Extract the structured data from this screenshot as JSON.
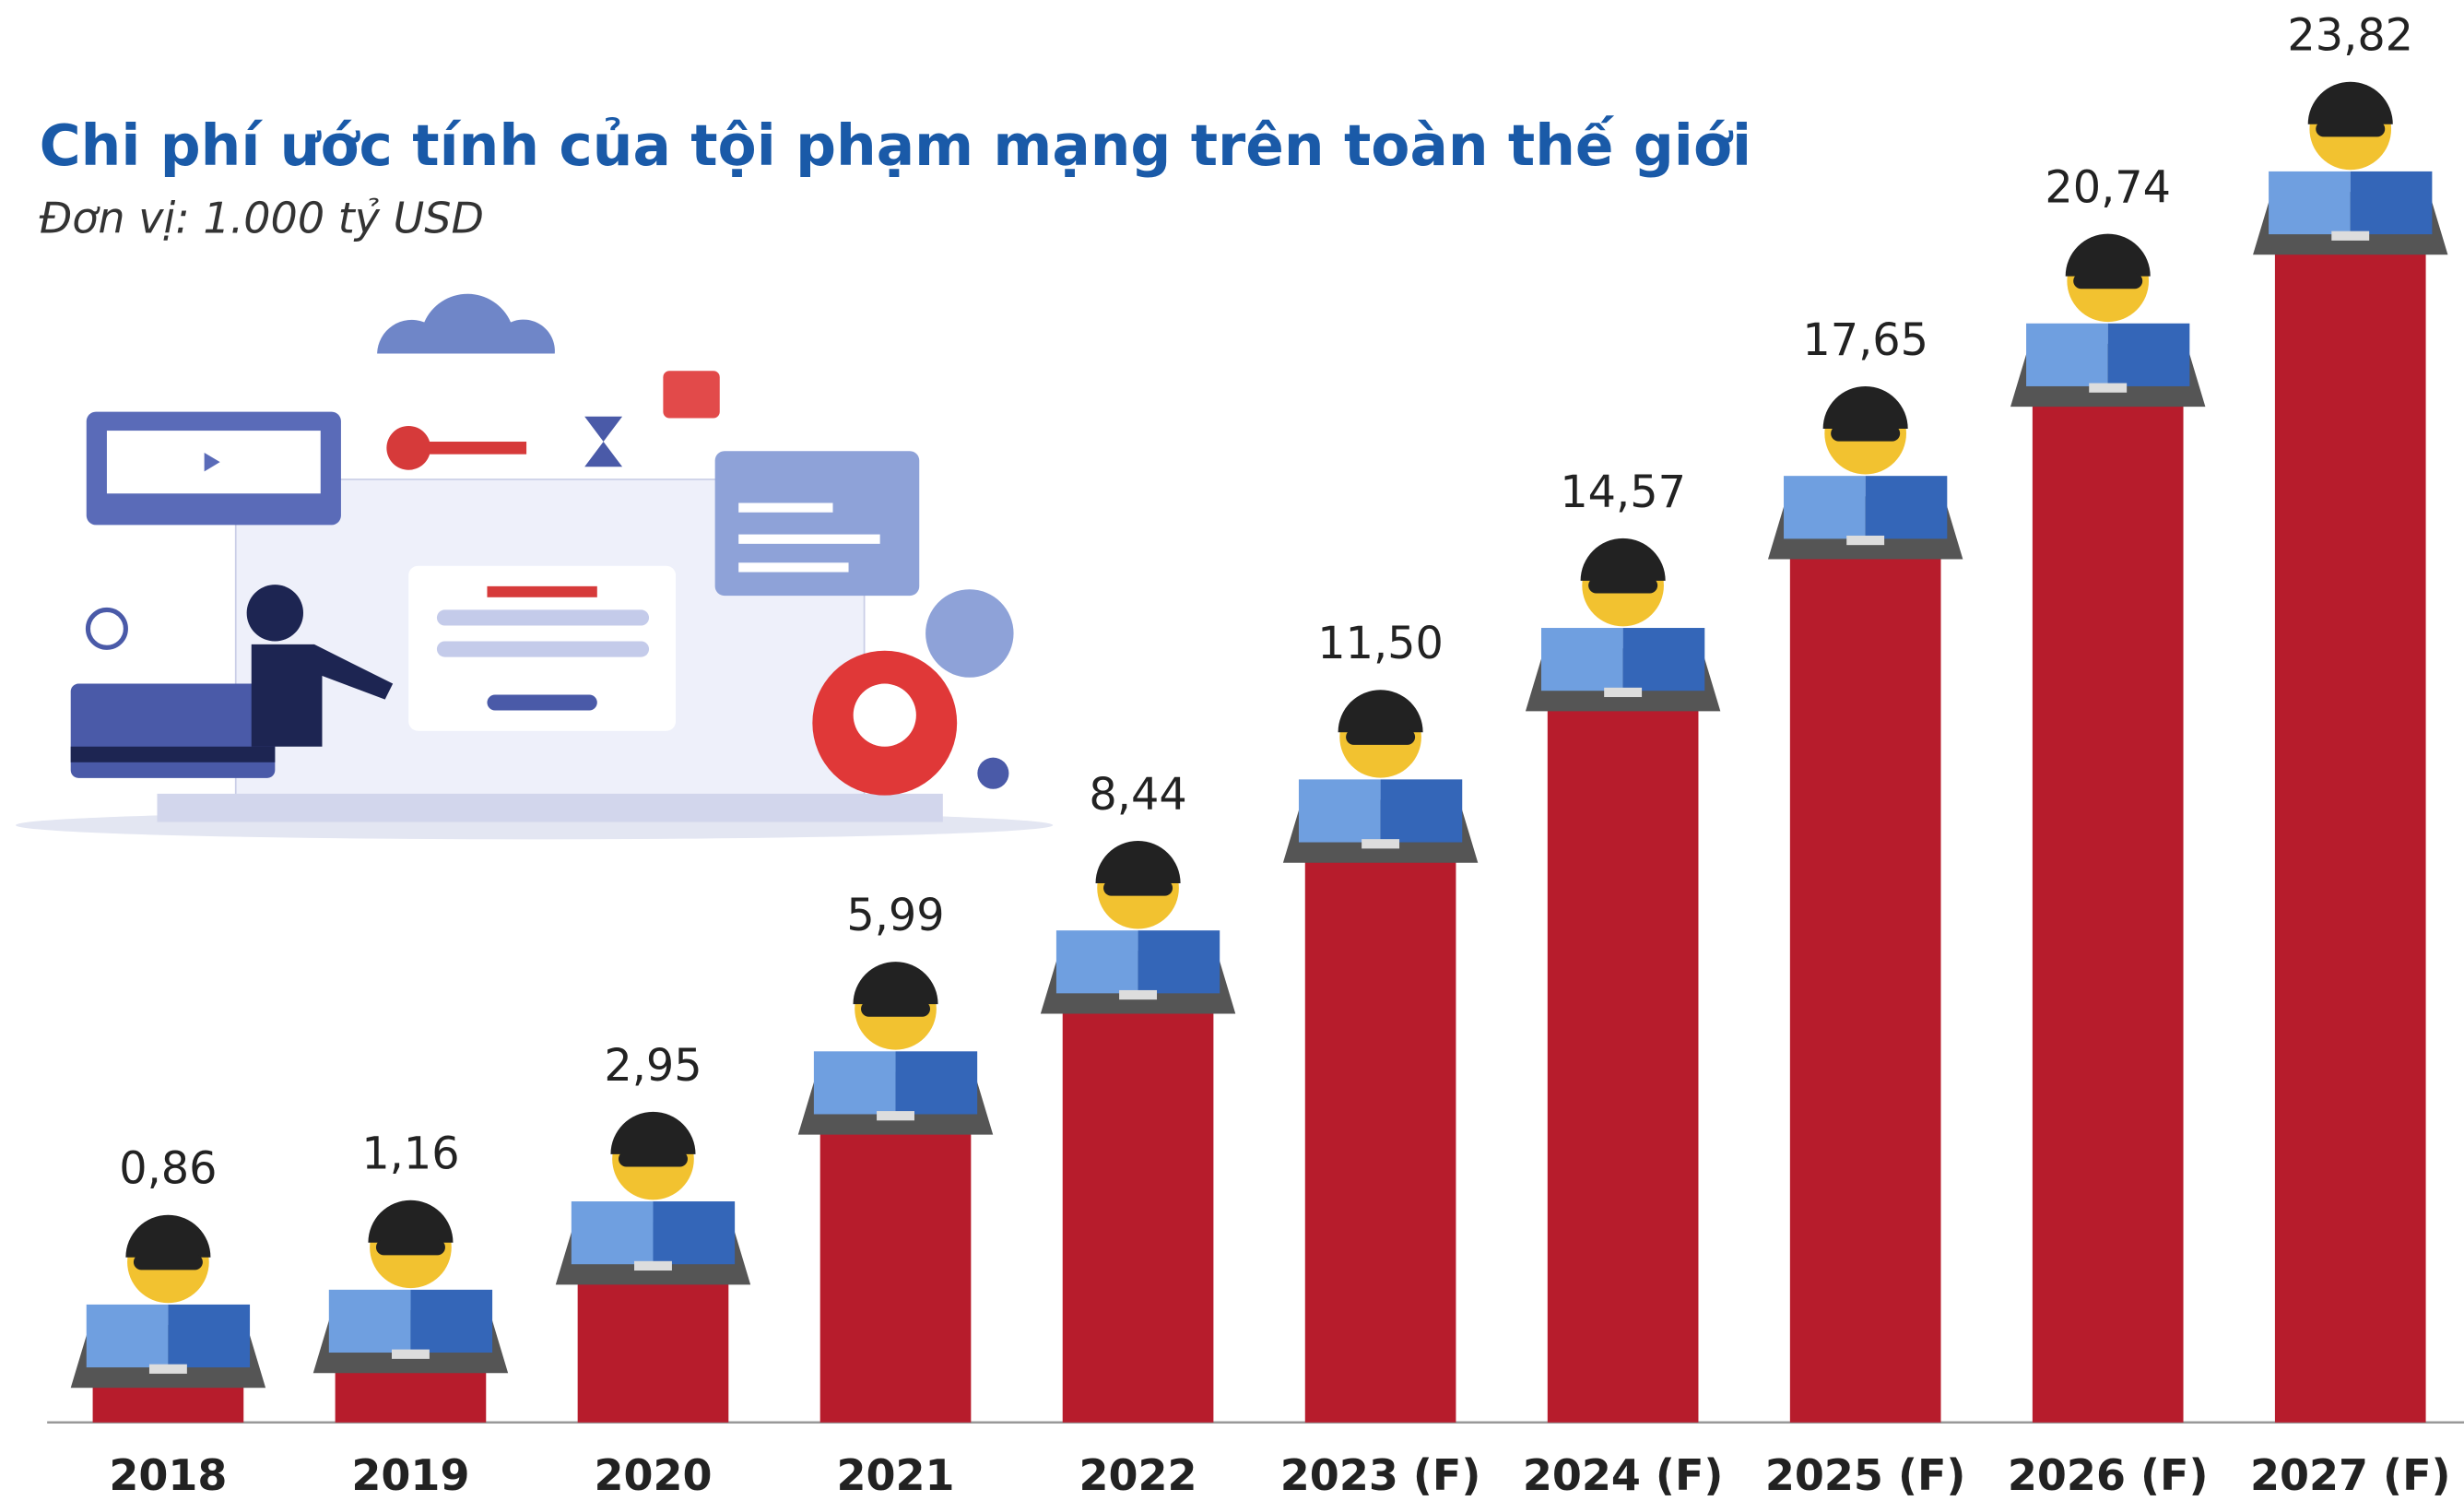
{
  "chart_data": {
    "type": "bar",
    "title": "Chi phí ước tính của tội phạm mạng trên toàn thế giới",
    "subtitle": "Đơn vị: 1.000 tỷ USD",
    "categories": [
      "2018",
      "2019",
      "2020",
      "2021",
      "2022",
      "2023 (F)",
      "2024 (F)",
      "2025 (F)",
      "2026 (F)",
      "2027 (F)"
    ],
    "values": [
      0.86,
      1.16,
      2.95,
      5.99,
      8.44,
      11.5,
      14.57,
      17.65,
      20.74,
      23.82
    ],
    "value_labels": [
      "0,86",
      "1,16",
      "2,95",
      "5,99",
      "8,44",
      "11,50",
      "14,57",
      "17,65",
      "20,74",
      "23,82"
    ],
    "color": "#b71c2c"
  }
}
